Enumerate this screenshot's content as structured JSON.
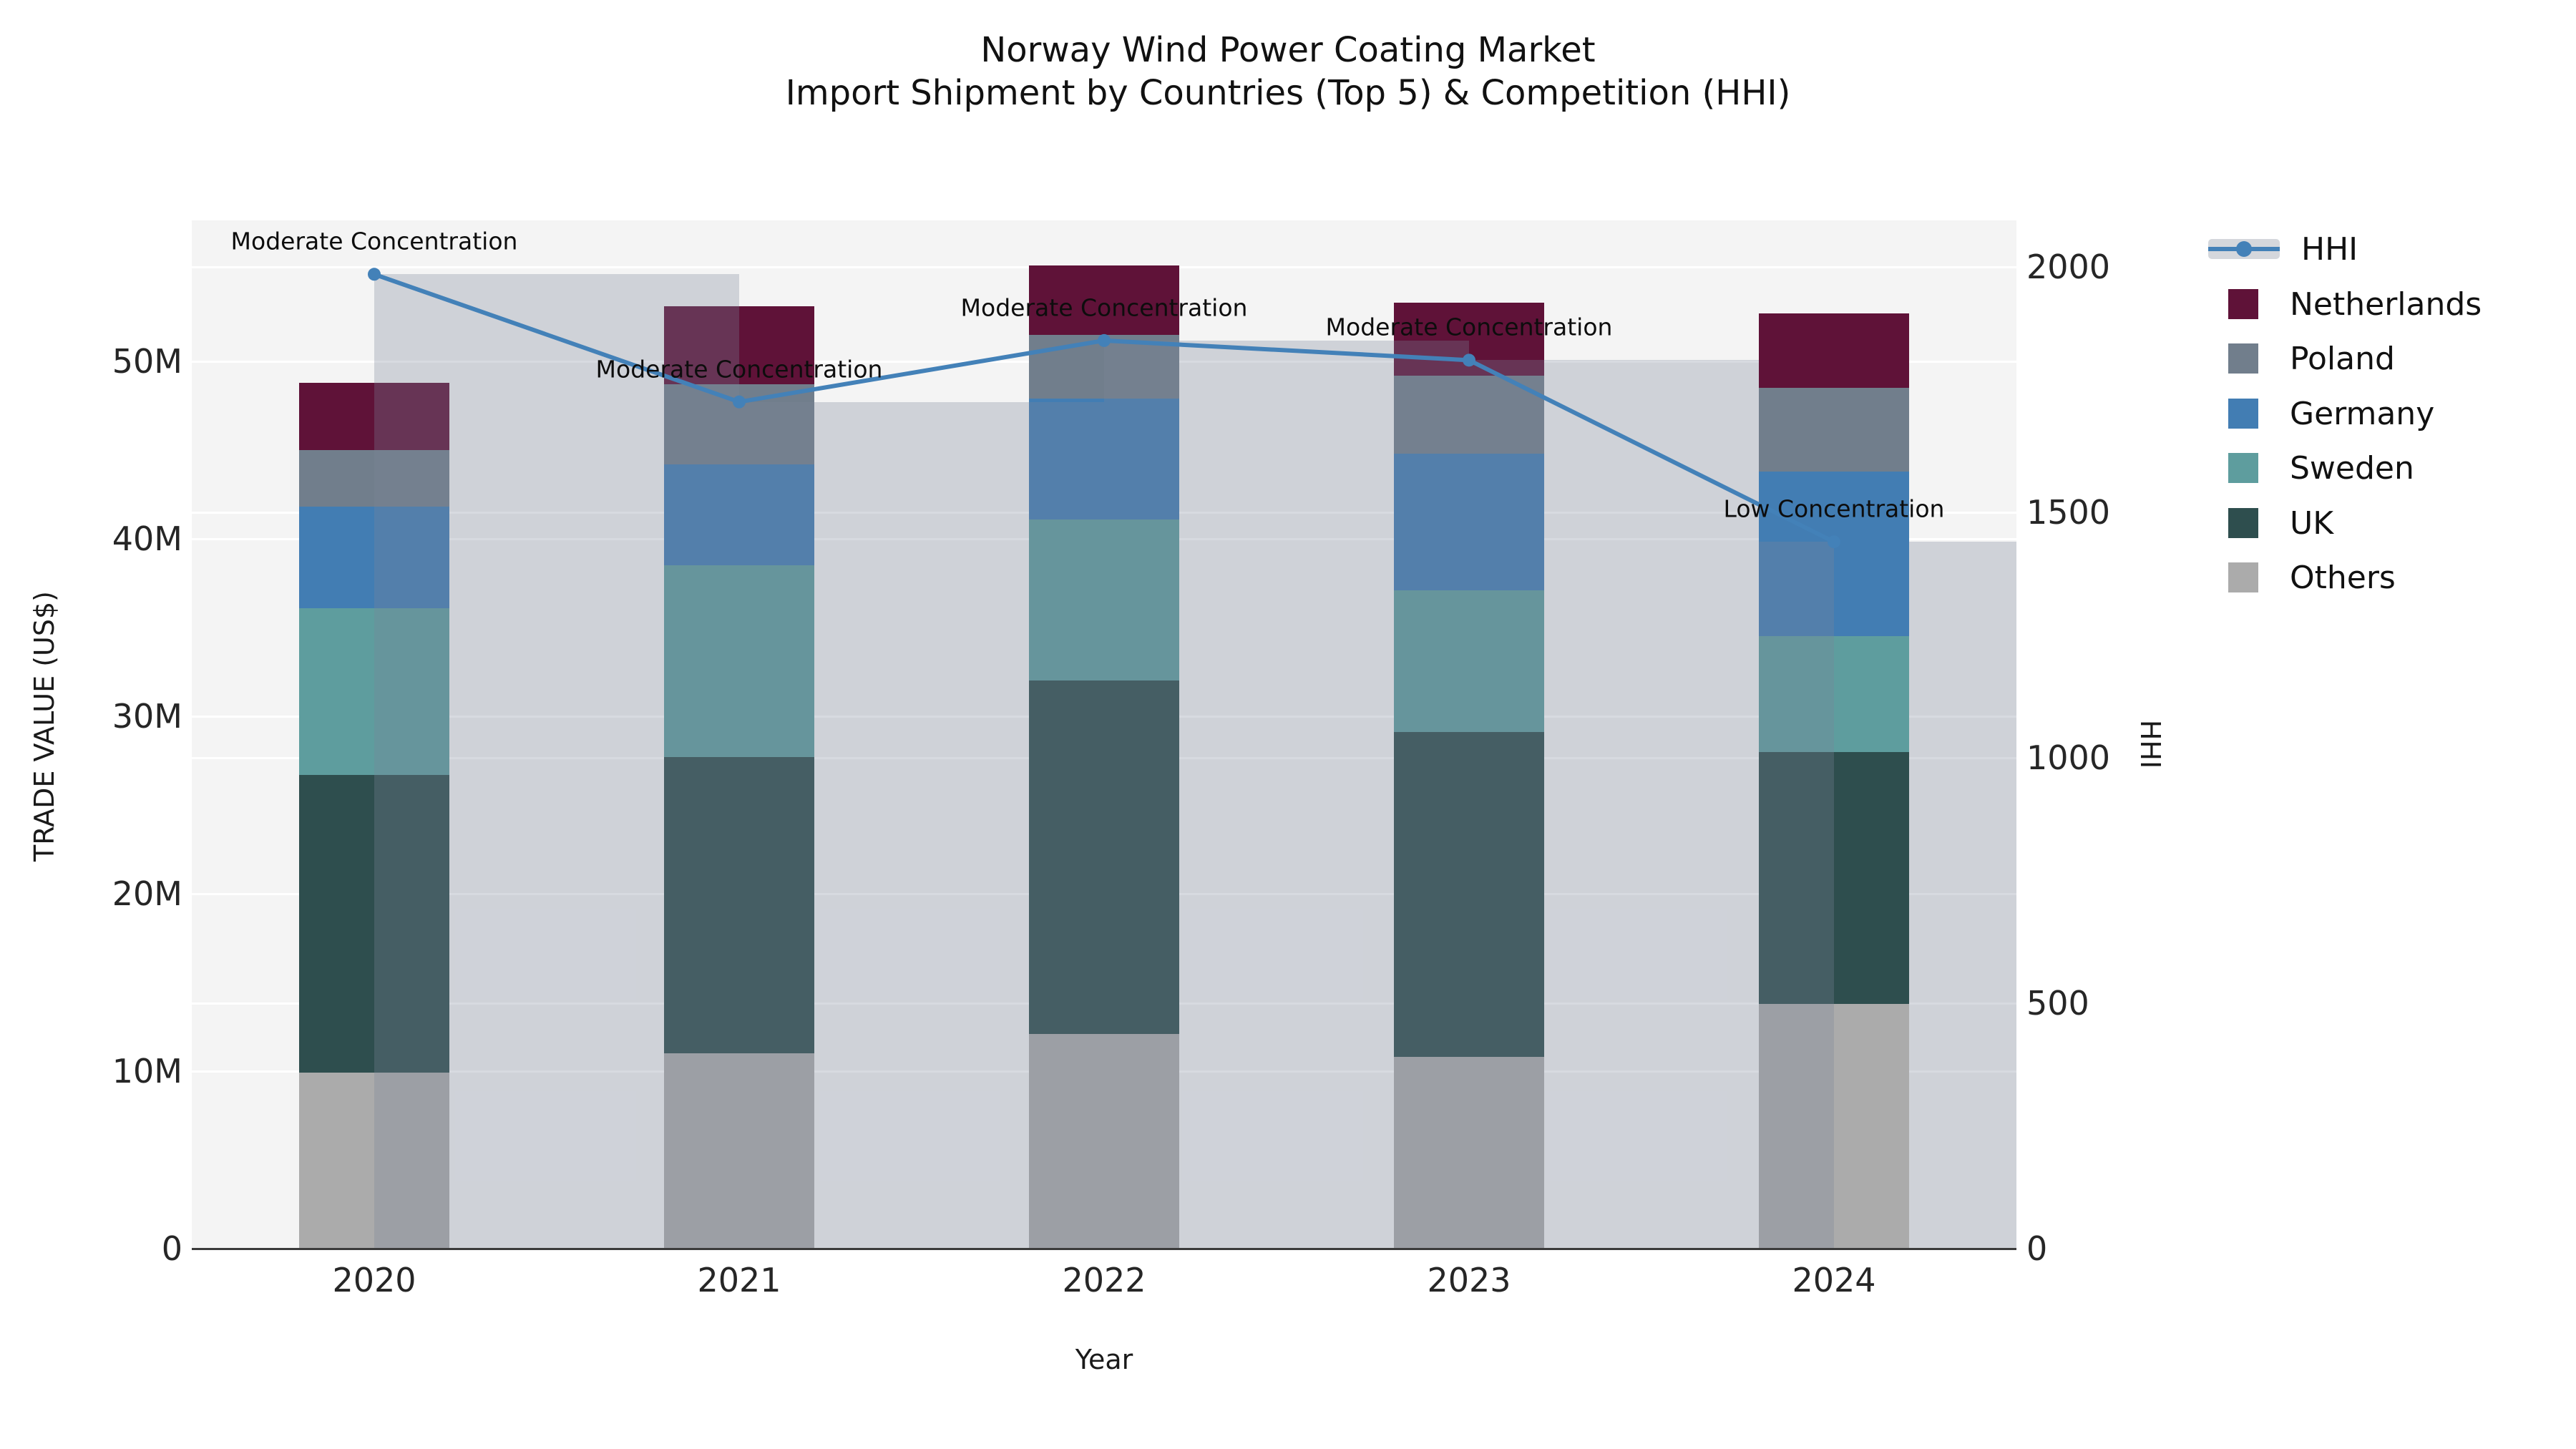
{
  "title": {
    "line1": "Norway Wind Power Coating Market",
    "line2": "Import Shipment by Countries (Top 5) & Competition (HHI)"
  },
  "axes": {
    "left_label": "TRADE VALUE (US$)",
    "right_label": "HHI",
    "x_label": "Year",
    "left_ticks": [
      {
        "label": "0",
        "value": 0
      },
      {
        "label": "10M",
        "value": 10
      },
      {
        "label": "20M",
        "value": 20
      },
      {
        "label": "30M",
        "value": 30
      },
      {
        "label": "40M",
        "value": 40
      },
      {
        "label": "50M",
        "value": 50
      }
    ],
    "right_ticks": [
      {
        "label": "0",
        "value": 0
      },
      {
        "label": "500",
        "value": 500
      },
      {
        "label": "1000",
        "value": 1000
      },
      {
        "label": "1500",
        "value": 1500
      },
      {
        "label": "2000",
        "value": 2000
      }
    ]
  },
  "legend": {
    "hhi_label": "HHI",
    "items": [
      "Netherlands",
      "Poland",
      "Germany",
      "Sweden",
      "UK",
      "Others"
    ]
  },
  "colors": {
    "Netherlands": "#5f1238",
    "Poland": "#717e8c",
    "Germany": "#427db3",
    "Sweden": "#5e9d9e",
    "UK": "#2e4e4e",
    "Others": "#ababab",
    "hhi_line": "#4381b8",
    "hhi_column": "#798599",
    "hhi_column_alpha": 0.3,
    "plot_background": "#f4f4f4"
  },
  "chart_data": {
    "type": "bar",
    "subtype": "stacked-bars-with-line",
    "title": "Norway Wind Power Coating Market — Import Shipment by Countries (Top 5) & Competition (HHI)",
    "xlabel": "Year",
    "ylabel_left": "TRADE VALUE (US$)",
    "ylabel_right": "HHI",
    "unit_left": "million US$",
    "ylim_left_millions": [
      0,
      58
    ],
    "ylim_right": [
      0,
      2000
    ],
    "grid": true,
    "legend_position": "right",
    "categories": [
      "2020",
      "2021",
      "2022",
      "2023",
      "2024"
    ],
    "series": [
      {
        "name": "Netherlands",
        "values": [
          3.8,
          4.4,
          3.9,
          4.1,
          4.2
        ]
      },
      {
        "name": "Poland",
        "values": [
          3.2,
          4.5,
          3.6,
          4.4,
          4.7
        ]
      },
      {
        "name": "Germany",
        "values": [
          5.7,
          5.7,
          6.8,
          7.7,
          9.3
        ]
      },
      {
        "name": "Sweden",
        "values": [
          9.4,
          10.8,
          9.1,
          8.0,
          6.5
        ]
      },
      {
        "name": "UK",
        "values": [
          16.8,
          16.7,
          19.9,
          18.3,
          14.2
        ]
      },
      {
        "name": "Others",
        "values": [
          9.9,
          11.0,
          12.1,
          10.8,
          13.8
        ]
      }
    ],
    "stack_totals_millions": [
      48.8,
      53.1,
      55.4,
      53.3,
      52.7
    ],
    "hhi_series": {
      "name": "HHI",
      "values": [
        1985,
        1725,
        1850,
        1810,
        1440
      ]
    },
    "annotations": [
      {
        "year": "2020",
        "text": "Moderate Concentration"
      },
      {
        "year": "2021",
        "text": "Moderate Concentration"
      },
      {
        "year": "2022",
        "text": "Moderate Concentration"
      },
      {
        "year": "2023",
        "text": "Moderate Concentration"
      },
      {
        "year": "2024",
        "text": "Low Concentration"
      }
    ]
  }
}
